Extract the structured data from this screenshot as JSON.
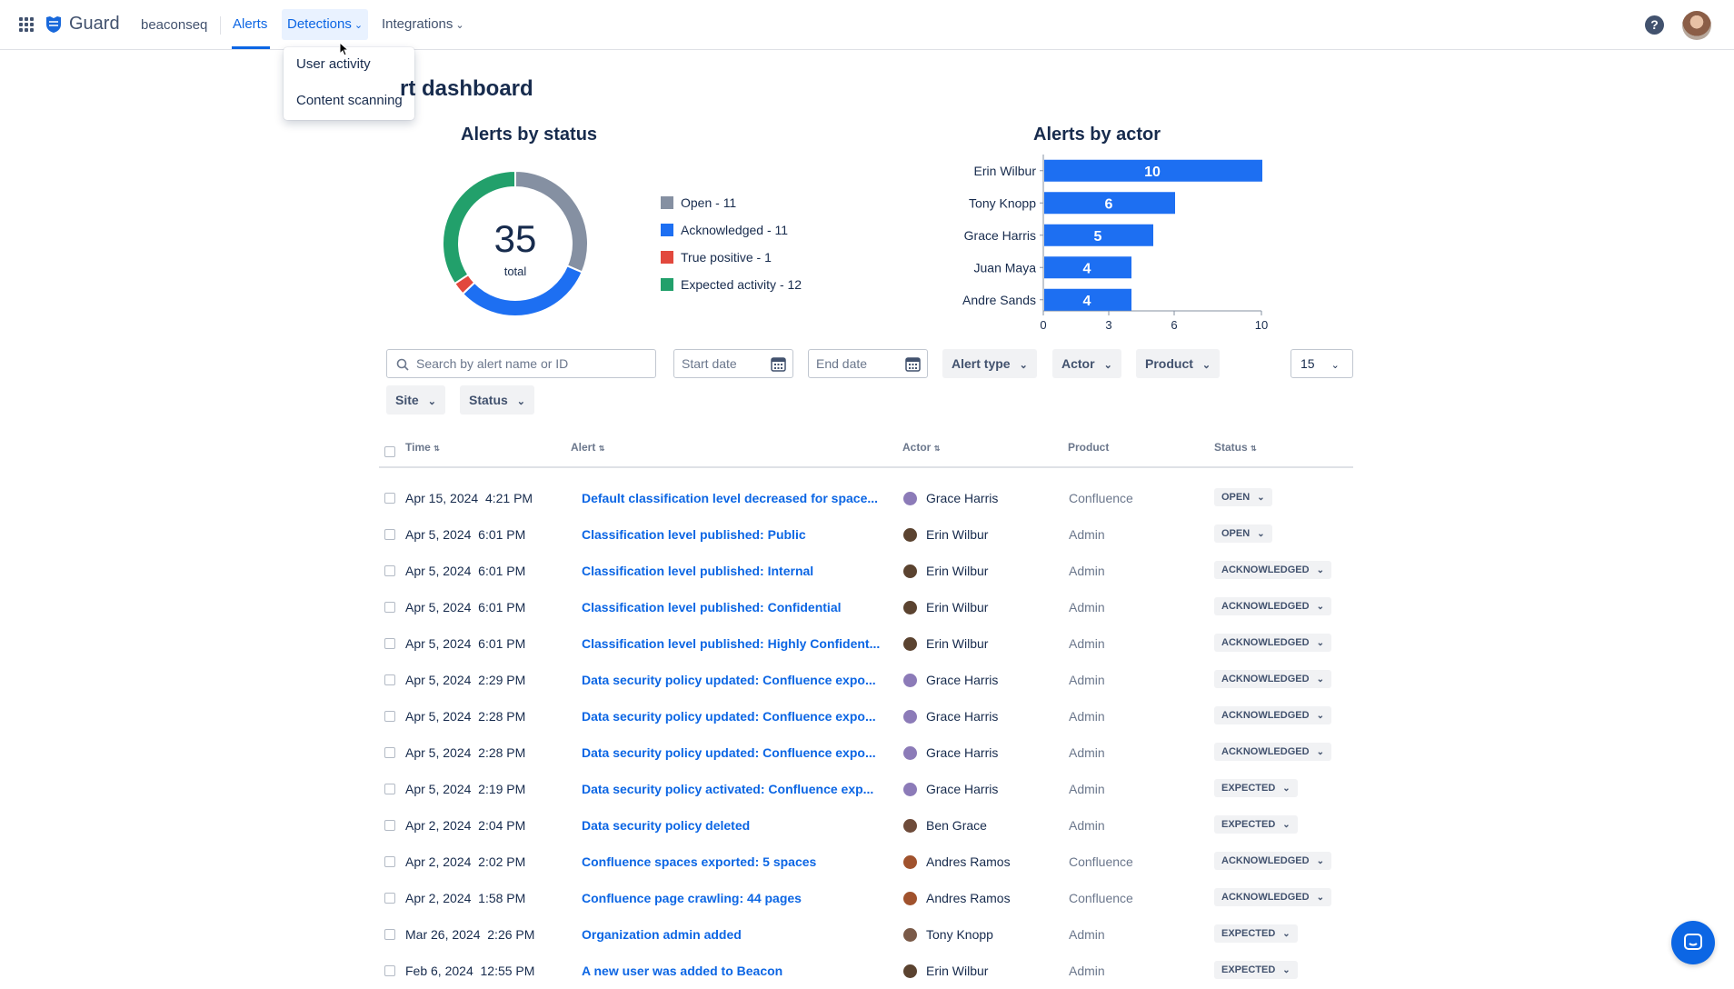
{
  "nav": {
    "app_name": "Guard",
    "site": "beaconseq",
    "items": [
      {
        "label": "Alerts",
        "active": true
      },
      {
        "label": "Detections",
        "open": true
      },
      {
        "label": "Integrations"
      }
    ],
    "dropdown": [
      "User activity",
      "Content scanning"
    ],
    "help_icon": "question-circle-icon"
  },
  "page": {
    "title_visible": "rt dashboard"
  },
  "status_chart": {
    "title": "Alerts by status",
    "total": "35",
    "total_label": "total",
    "legend": [
      {
        "label": "Open - 11",
        "color": "#8590a2"
      },
      {
        "label": "Acknowledged - 11",
        "color": "#1d6ff2"
      },
      {
        "label": "True positive - 1",
        "color": "#e2483d"
      },
      {
        "label": "Expected activity - 12",
        "color": "#22a06b"
      }
    ]
  },
  "actor_chart": {
    "title": "Alerts by actor"
  },
  "chart_data": [
    {
      "type": "pie",
      "title": "Alerts by status",
      "categories": [
        "Open",
        "Acknowledged",
        "True positive",
        "Expected activity"
      ],
      "values": [
        11,
        11,
        1,
        12
      ],
      "colors": [
        "#8590a2",
        "#1d6ff2",
        "#e2483d",
        "#22a06b"
      ]
    },
    {
      "type": "bar",
      "orientation": "horizontal",
      "title": "Alerts by actor",
      "categories": [
        "Erin Wilbur",
        "Tony Knopp",
        "Grace Harris",
        "Juan Maya",
        "Andre Sands"
      ],
      "values": [
        10,
        6,
        5,
        4,
        4
      ],
      "xticks": [
        0,
        3,
        6,
        10
      ],
      "xlim": [
        0,
        10
      ],
      "color": "#1d6ff2"
    }
  ],
  "filters": {
    "search_placeholder": "Search by alert name or ID",
    "start_date": "Start date",
    "end_date": "End date",
    "alert_type": "Alert type",
    "actor": "Actor",
    "product": "Product",
    "site": "Site",
    "status": "Status",
    "page_size": "15"
  },
  "table": {
    "headers": {
      "time": "Time",
      "alert": "Alert",
      "actor": "Actor",
      "product": "Product",
      "status": "Status"
    },
    "rows": [
      {
        "time": "Apr 15, 2024  4:21 PM",
        "alert": "Default classification level decreased for space...",
        "actor": "Grace Harris",
        "product": "Confluence",
        "status": "OPEN"
      },
      {
        "time": "Apr 5, 2024  6:01 PM",
        "alert": "Classification level published: Public",
        "actor": "Erin Wilbur",
        "product": "Admin",
        "status": "OPEN"
      },
      {
        "time": "Apr 5, 2024  6:01 PM",
        "alert": "Classification level published: Internal",
        "actor": "Erin Wilbur",
        "product": "Admin",
        "status": "ACKNOWLEDGED"
      },
      {
        "time": "Apr 5, 2024  6:01 PM",
        "alert": "Classification level published: Confidential",
        "actor": "Erin Wilbur",
        "product": "Admin",
        "status": "ACKNOWLEDGED"
      },
      {
        "time": "Apr 5, 2024  6:01 PM",
        "alert": "Classification level published: Highly Confident...",
        "actor": "Erin Wilbur",
        "product": "Admin",
        "status": "ACKNOWLEDGED"
      },
      {
        "time": "Apr 5, 2024  2:29 PM",
        "alert": "Data security policy updated: Confluence expo...",
        "actor": "Grace Harris",
        "product": "Admin",
        "status": "ACKNOWLEDGED"
      },
      {
        "time": "Apr 5, 2024  2:28 PM",
        "alert": "Data security policy updated: Confluence expo...",
        "actor": "Grace Harris",
        "product": "Admin",
        "status": "ACKNOWLEDGED"
      },
      {
        "time": "Apr 5, 2024  2:28 PM",
        "alert": "Data security policy updated: Confluence expo...",
        "actor": "Grace Harris",
        "product": "Admin",
        "status": "ACKNOWLEDGED"
      },
      {
        "time": "Apr 5, 2024  2:19 PM",
        "alert": "Data security policy activated: Confluence exp...",
        "actor": "Grace Harris",
        "product": "Admin",
        "status": "EXPECTED"
      },
      {
        "time": "Apr 2, 2024  2:04 PM",
        "alert": "Data security policy deleted",
        "actor": "Ben Grace",
        "product": "Admin",
        "status": "EXPECTED"
      },
      {
        "time": "Apr 2, 2024  2:02 PM",
        "alert": "Confluence spaces exported: 5 spaces",
        "actor": "Andres Ramos",
        "product": "Confluence",
        "status": "ACKNOWLEDGED"
      },
      {
        "time": "Apr 2, 2024  1:58 PM",
        "alert": "Confluence page crawling: 44 pages",
        "actor": "Andres Ramos",
        "product": "Confluence",
        "status": "ACKNOWLEDGED"
      },
      {
        "time": "Mar 26, 2024  2:26 PM",
        "alert": "Organization admin added",
        "actor": "Tony Knopp",
        "product": "Admin",
        "status": "EXPECTED"
      },
      {
        "time": "Feb 6, 2024  12:55 PM",
        "alert": "A new user was added to Beacon",
        "actor": "Erin Wilbur",
        "product": "Admin",
        "status": "EXPECTED"
      }
    ]
  }
}
